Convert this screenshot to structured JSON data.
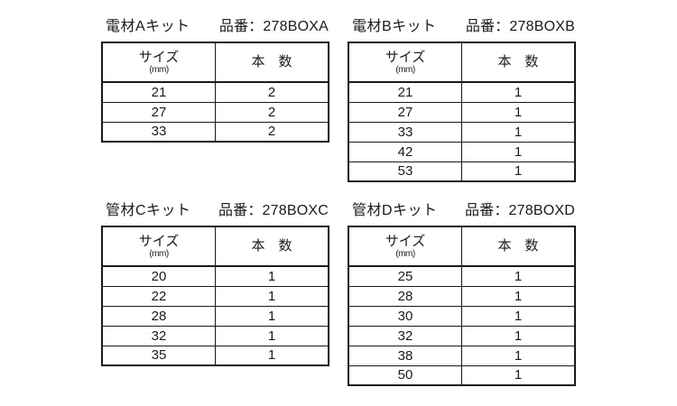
{
  "canvas": {
    "background_color": "#ffffff",
    "text_color": "#1a1a1a",
    "border_color": "#1a1a1a"
  },
  "tables": [
    {
      "title": "電材Aキット",
      "part": "品番：278BOXA",
      "headers": {
        "size": "サイズ",
        "unit": "(mm)",
        "qty": "本　数"
      },
      "rows": [
        {
          "size": "21",
          "qty": "2"
        },
        {
          "size": "27",
          "qty": "2"
        },
        {
          "size": "33",
          "qty": "2"
        }
      ]
    },
    {
      "title": "電材Bキット",
      "part": "品番：278BOXB",
      "headers": {
        "size": "サイズ",
        "unit": "(mm)",
        "qty": "本　数"
      },
      "rows": [
        {
          "size": "21",
          "qty": "1"
        },
        {
          "size": "27",
          "qty": "1"
        },
        {
          "size": "33",
          "qty": "1"
        },
        {
          "size": "42",
          "qty": "1"
        },
        {
          "size": "53",
          "qty": "1"
        }
      ]
    },
    {
      "title": "管材Cキット",
      "part": "品番：278BOXC",
      "headers": {
        "size": "サイズ",
        "unit": "(mm)",
        "qty": "本　数"
      },
      "rows": [
        {
          "size": "20",
          "qty": "1"
        },
        {
          "size": "22",
          "qty": "1"
        },
        {
          "size": "28",
          "qty": "1"
        },
        {
          "size": "32",
          "qty": "1"
        },
        {
          "size": "35",
          "qty": "1"
        }
      ]
    },
    {
      "title": "管材Dキット",
      "part": "品番：278BOXD",
      "headers": {
        "size": "サイズ",
        "unit": "(mm)",
        "qty": "本　数"
      },
      "rows": [
        {
          "size": "25",
          "qty": "1"
        },
        {
          "size": "28",
          "qty": "1"
        },
        {
          "size": "30",
          "qty": "1"
        },
        {
          "size": "32",
          "qty": "1"
        },
        {
          "size": "38",
          "qty": "1"
        },
        {
          "size": "50",
          "qty": "1"
        }
      ]
    }
  ]
}
